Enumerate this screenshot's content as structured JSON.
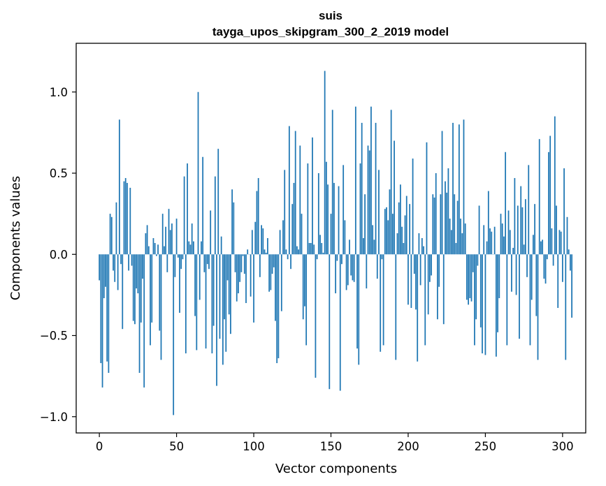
{
  "chart_data": {
    "type": "bar",
    "title": "suis",
    "subtitle": "tayga_upos_skipgram_300_2_2019 model",
    "xlabel": "Vector components",
    "ylabel": "Components values",
    "xlim": [
      -15,
      315
    ],
    "ylim": [
      -1.1,
      1.3
    ],
    "xticks": [
      0,
      50,
      100,
      150,
      200,
      250,
      300
    ],
    "xtick_labels": [
      "0",
      "50",
      "100",
      "150",
      "200",
      "250",
      "300"
    ],
    "yticks": [
      -1.0,
      -0.5,
      0.0,
      0.5,
      1.0
    ],
    "ytick_labels": [
      "−1.0",
      "−0.5",
      "0.0",
      "0.5",
      "1.0"
    ],
    "bar_color": "#1f77b4",
    "x": "0..299",
    "values": [
      -0.16,
      -0.67,
      -0.82,
      -0.27,
      -0.2,
      -0.66,
      -0.73,
      0.25,
      0.23,
      -0.1,
      -0.17,
      0.32,
      -0.22,
      0.83,
      -0.06,
      -0.46,
      0.45,
      0.47,
      0.44,
      -0.1,
      0.41,
      -0.07,
      -0.41,
      -0.43,
      -0.21,
      -0.24,
      -0.73,
      -0.42,
      -0.15,
      -0.82,
      0.13,
      0.18,
      0.05,
      -0.56,
      -0.42,
      0.1,
      0.07,
      -0.01,
      0.06,
      -0.47,
      -0.65,
      0.25,
      0.05,
      0.17,
      -0.11,
      0.28,
      0.15,
      0.19,
      -0.99,
      -0.14,
      0.22,
      -0.02,
      -0.36,
      -0.09,
      -0.03,
      0.48,
      -0.61,
      0.56,
      0.08,
      0.06,
      0.19,
      0.08,
      -0.38,
      -0.59,
      1.0,
      -0.28,
      0.08,
      0.6,
      -0.11,
      -0.58,
      -0.06,
      -0.09,
      0.27,
      -0.61,
      -0.44,
      0.48,
      -0.81,
      0.65,
      -0.52,
      0.11,
      -0.68,
      -0.4,
      -0.6,
      -0.16,
      -0.37,
      -0.49,
      0.4,
      0.32,
      -0.11,
      -0.29,
      -0.24,
      -0.17,
      -0.11,
      -0.01,
      -0.12,
      -0.3,
      0.03,
      0.0,
      -0.26,
      0.15,
      -0.42,
      0.2,
      0.39,
      0.47,
      -0.14,
      0.18,
      0.16,
      0.03,
      0.01,
      0.1,
      -0.23,
      -0.22,
      -0.12,
      -0.08,
      -0.41,
      -0.67,
      -0.64,
      0.15,
      -0.35,
      0.21,
      0.52,
      0.03,
      -0.03,
      0.79,
      -0.09,
      0.31,
      0.44,
      0.76,
      0.05,
      0.03,
      0.67,
      0.25,
      -0.4,
      -0.32,
      -0.56,
      0.56,
      0.07,
      0.07,
      0.72,
      0.06,
      -0.76,
      -0.03,
      0.5,
      0.12,
      0.07,
      0.01,
      1.13,
      0.57,
      0.43,
      -0.83,
      0.25,
      0.89,
      0.44,
      -0.24,
      -0.04,
      0.42,
      -0.84,
      -0.06,
      0.55,
      0.21,
      -0.22,
      -0.19,
      0.09,
      -0.13,
      -0.16,
      -0.17,
      0.91,
      -0.58,
      -0.68,
      0.56,
      0.81,
      0.1,
      0.37,
      -0.21,
      0.67,
      0.64,
      0.91,
      0.18,
      0.09,
      0.81,
      -0.15,
      0.52,
      -0.6,
      -0.03,
      -0.56,
      0.28,
      0.29,
      0.21,
      0.4,
      0.89,
      0.25,
      0.7,
      -0.65,
      0.13,
      0.32,
      0.43,
      0.17,
      0.07,
      0.24,
      0.36,
      -0.31,
      0.31,
      -0.33,
      0.59,
      -0.12,
      -0.34,
      -0.66,
      0.13,
      -0.19,
      0.1,
      0.05,
      -0.56,
      0.69,
      -0.37,
      -0.17,
      -0.13,
      0.37,
      0.35,
      0.5,
      -0.4,
      -0.2,
      0.37,
      0.76,
      -0.43,
      0.45,
      0.38,
      0.53,
      0.22,
      0.15,
      0.81,
      0.37,
      0.07,
      0.33,
      0.8,
      0.22,
      0.13,
      0.83,
      0.19,
      -0.28,
      -0.31,
      -0.27,
      -0.29,
      -0.11,
      -0.56,
      -0.4,
      -0.07,
      0.3,
      -0.45,
      -0.61,
      0.18,
      -0.62,
      0.08,
      0.39,
      0.16,
      0.14,
      0.0,
      0.17,
      -0.63,
      -0.48,
      -0.27,
      0.25,
      0.19,
      0.11,
      0.63,
      -0.56,
      0.27,
      0.15,
      -0.23,
      0.04,
      0.47,
      -0.25,
      0.3,
      -0.52,
      0.42,
      0.29,
      0.06,
      0.34,
      -0.14,
      0.55,
      -0.56,
      -0.28,
      0.12,
      0.31,
      -0.38,
      -0.65,
      0.71,
      0.08,
      0.09,
      -0.15,
      -0.18,
      -0.03,
      0.63,
      0.73,
      0.16,
      -0.07,
      0.85,
      0.3,
      -0.33,
      0.15,
      0.14,
      -0.17,
      0.53,
      -0.65,
      0.23,
      0.03,
      -0.1,
      -0.39
    ]
  }
}
